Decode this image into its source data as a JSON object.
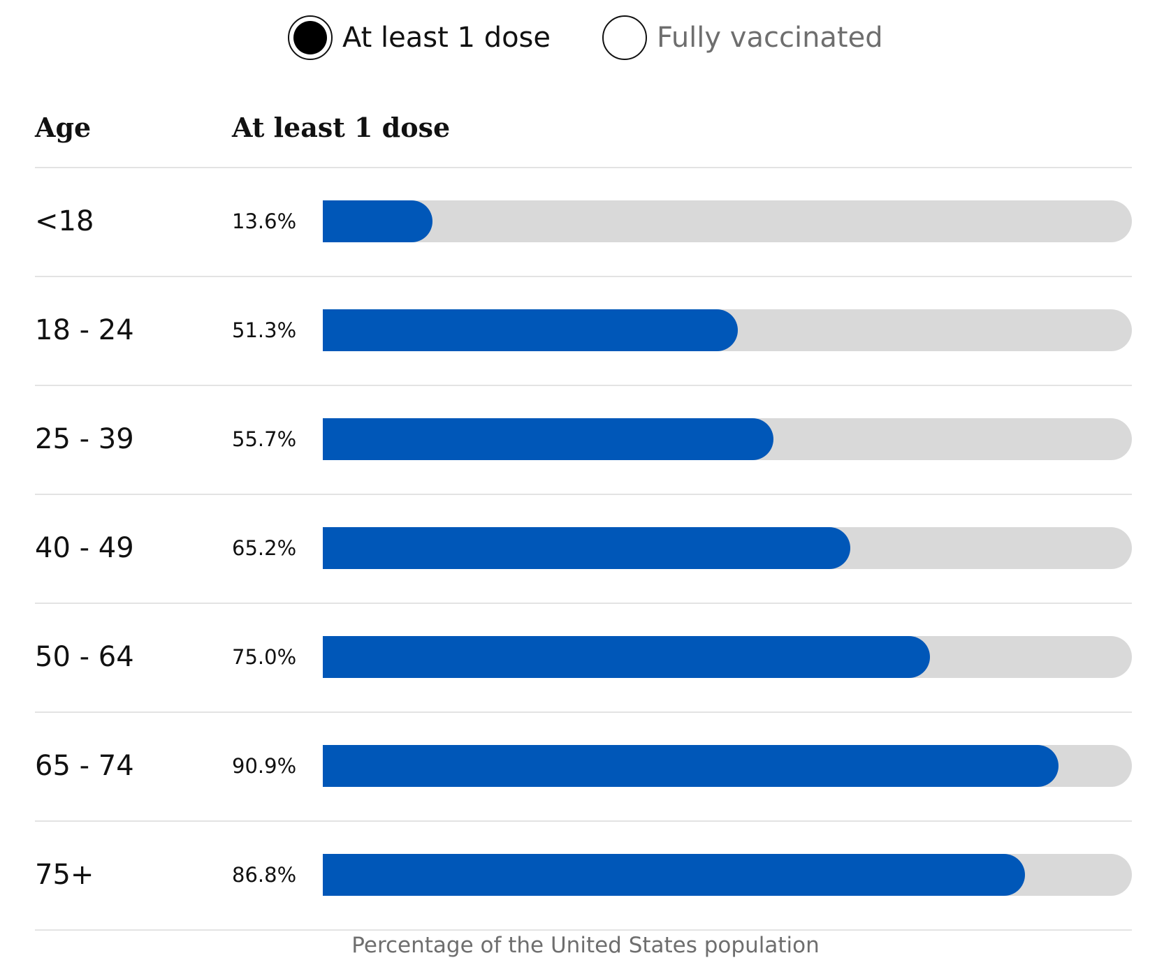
{
  "toggle": {
    "options": [
      {
        "label": "At least 1 dose",
        "selected": true
      },
      {
        "label": "Fully vaccinated",
        "selected": false
      }
    ]
  },
  "colors": {
    "bar": "#0057B8",
    "track": "#D9D9D9",
    "rule": "#E3E3E3",
    "muted_text": "#6E6E6E"
  },
  "chart_data": {
    "type": "bar",
    "orientation": "horizontal",
    "category_header": "Age",
    "value_header": "At least 1 dose",
    "categories": [
      "<18",
      "18 - 24",
      "25 - 39",
      "40 - 49",
      "50 - 64",
      "65 - 74",
      "75+"
    ],
    "values": [
      13.6,
      51.3,
      55.7,
      65.2,
      75.0,
      90.9,
      86.8
    ],
    "value_labels": [
      "13.6%",
      "51.3%",
      "55.7%",
      "65.2%",
      "75.0%",
      "90.9%",
      "86.8%"
    ],
    "xlim": [
      0,
      100
    ],
    "xlabel": "Percentage of the United States population",
    "grid": false
  }
}
